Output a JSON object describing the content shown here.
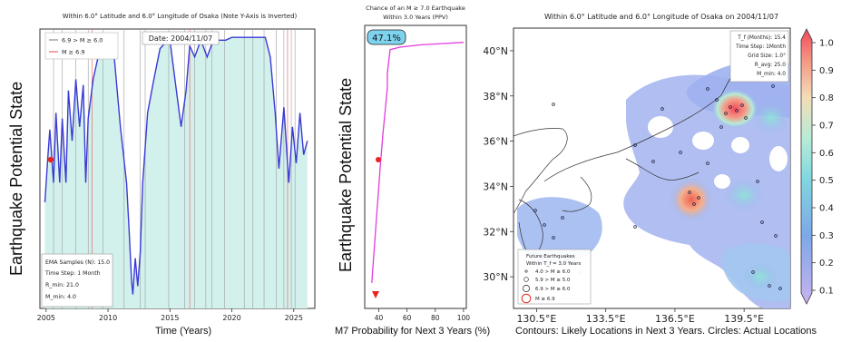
{
  "panels": {
    "left": {
      "title": "Within 6.0° Latitude and 6.0° Longitude of Osaka (Note Y-Axis is Inverted)",
      "ylabel": "Earthquake Potential State",
      "xlabel": "Time (Years)",
      "date_box": "Date: 2004/11/07",
      "legend": [
        "6.9 > M ≥ 6.0",
        "M ≥ 6.9"
      ],
      "info_box": [
        "EMA Samples (N): 15.0",
        "Time Step: 1 Month",
        "R_min: 21.0",
        "M_min: 4.0"
      ]
    },
    "middle": {
      "title_line1": "Chance of an M ≥ 7.0 Earthquake",
      "title_line2": "Within 3.0 Years (PPV)",
      "ylabel": "Earthquake Potential State",
      "xlabel": "M7 Probability for Next 3 Years (%)",
      "badge": "47.1%"
    },
    "right": {
      "title": "Within 6.0° Latitude and 6.0° Longitude of Osaka on 2004/11/07",
      "xlabel": "Contours: Likely Locations in Next 3 Years. Circles: Actual Locations",
      "info_box": [
        "T_f (Months): 15.4",
        "Time Step: 1Month",
        "Grid Size: 1.0°",
        "R_avg: 25.0",
        "M_min: 4.0"
      ],
      "legend_title": [
        "Future Earthquakes",
        "Within T_f = 3.0 Years"
      ],
      "legend": [
        "4.0 > M ≥ 6.0",
        "5.9 > M ≥ 5.0",
        "6.9 > M ≥ 6.0",
        "M ≥ 6.9"
      ],
      "colorbar_ticks": [
        "1.0",
        "0.9",
        "0.8",
        "0.7",
        "0.6",
        "0.5",
        "0.4",
        "0.3",
        "0.2",
        "0.1"
      ]
    }
  },
  "chart_data": [
    {
      "type": "area",
      "title": "Within 6.0° Latitude and 6.0° Longitude of Osaka (Note Y-Axis is Inverted)",
      "xlabel": "Time (Years)",
      "ylabel": "Earthquake Potential State",
      "xlim": [
        2004.5,
        2026.7
      ],
      "ylim": [
        0,
        1
      ],
      "y_inverted": true,
      "x_ticks": [
        "2005",
        "2010",
        "2015",
        "2020",
        "2025"
      ],
      "series": [
        {
          "x": [
            2004.9,
            2005.15,
            2005.3,
            2005.6,
            2005.8,
            2006.1,
            2006.3,
            2006.6,
            2006.8,
            2007.1,
            2007.4,
            2007.7,
            2008.0,
            2008.2,
            2008.4,
            2008.8,
            2009.2,
            2009.7,
            2010.1,
            2010.5,
            2011.0,
            2011.5,
            2011.7,
            2011.9,
            2012.0,
            2012.2,
            2012.4,
            2012.6,
            2012.8,
            2013.2,
            2013.7,
            2014.2,
            2014.6,
            2015.0,
            2015.4,
            2015.9,
            2016.3,
            2016.6,
            2017.0,
            2017.5,
            2018.0,
            2018.5,
            2019.0,
            2019.5,
            2020.0,
            2020.5,
            2021.1,
            2021.6,
            2022.3,
            2022.7,
            2023.1,
            2023.5,
            2023.8,
            2024.2,
            2024.6,
            2024.9,
            2025.2,
            2025.5,
            2025.8,
            2026.1
          ],
          "values": [
            0.62,
            0.45,
            0.36,
            0.55,
            0.3,
            0.55,
            0.32,
            0.55,
            0.22,
            0.4,
            0.18,
            0.35,
            0.2,
            0.55,
            0.32,
            0.18,
            0.1,
            0.05,
            0.04,
            0.1,
            0.35,
            0.55,
            0.72,
            0.9,
            0.95,
            0.82,
            0.92,
            0.8,
            0.55,
            0.3,
            0.18,
            0.07,
            0.05,
            0.04,
            0.18,
            0.35,
            0.22,
            0.06,
            0.1,
            0.04,
            0.1,
            0.04,
            0.04,
            0.04,
            0.03,
            0.03,
            0.03,
            0.03,
            0.03,
            0.03,
            0.1,
            0.3,
            0.5,
            0.28,
            0.55,
            0.35,
            0.48,
            0.3,
            0.45,
            0.4
          ]
        }
      ]
    },
    {
      "type": "line",
      "title": "Chance of an M ≥ 7.0 Earthquake Within 3.0 Years (PPV)",
      "xlabel": "M7 Probability for Next 3 Years (%)",
      "ylabel": "Earthquake Potential State",
      "xlim": [
        30,
        102
      ],
      "x_ticks": [
        "40",
        "60",
        "80",
        "100"
      ],
      "series": [
        {
          "x": [
            35,
            36,
            37,
            38,
            39,
            40,
            41,
            42,
            43,
            44,
            45,
            46,
            46,
            47,
            48,
            55,
            70,
            85,
            100
          ],
          "values": [
            0.0,
            0.08,
            0.16,
            0.24,
            0.32,
            0.4,
            0.48,
            0.55,
            0.62,
            0.68,
            0.74,
            0.8,
            0.86,
            0.91,
            0.96,
            0.97,
            0.98,
            0.985,
            0.99
          ]
        }
      ]
    },
    {
      "type": "heatmap",
      "title": "Within 6.0° Latitude and 6.0° Longitude of Osaka on 2004/11/07",
      "x_ticks": [
        "130.5°E",
        "133.5°E",
        "136.5°E",
        "139.5°E"
      ],
      "y_ticks": [
        "40°N",
        "38°N",
        "36°N",
        "34°N",
        "32°N",
        "30°N"
      ],
      "xlim": [
        129.5,
        141.5
      ],
      "ylim": [
        28.6,
        41.0
      ],
      "colorbar_range": [
        0.1,
        1.0
      ]
    }
  ]
}
